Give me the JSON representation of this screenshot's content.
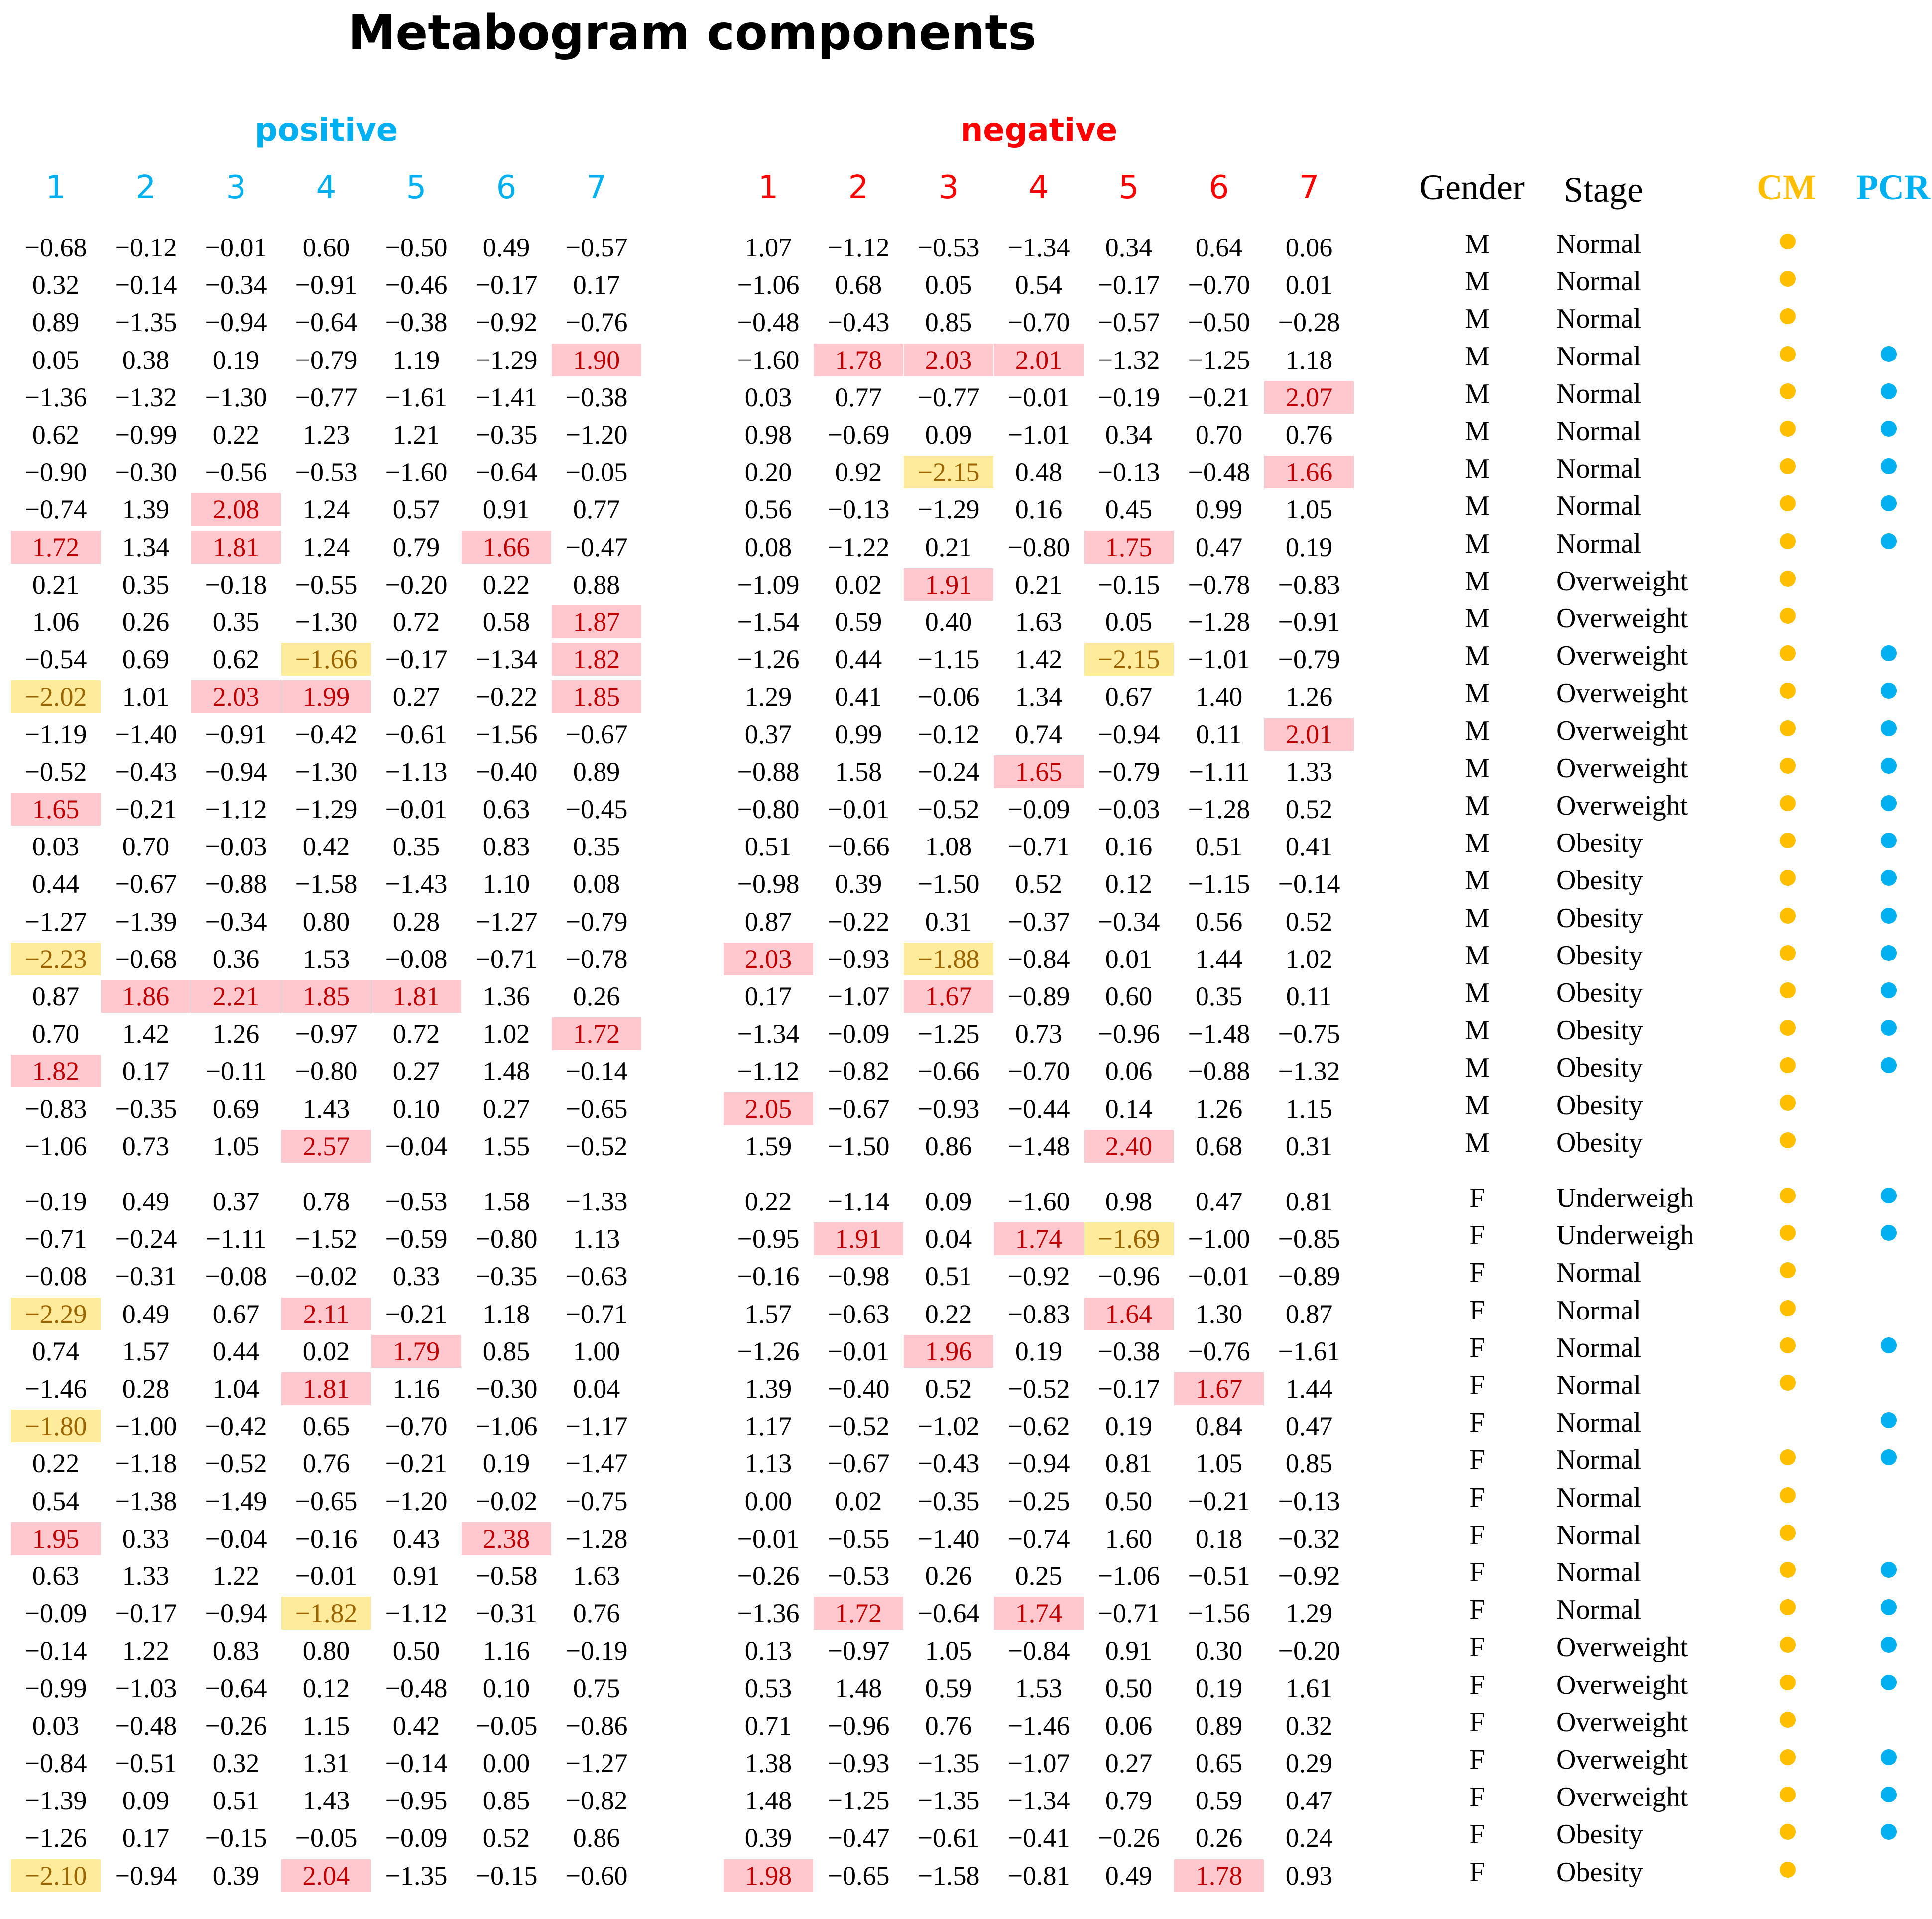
{
  "chart_data": {
    "type": "table",
    "title": "Metabogram components",
    "groups": [
      {
        "key": "positive",
        "label": "positive",
        "color": "#00b0f0"
      },
      {
        "key": "negative",
        "label": "negative",
        "color": "#ff0000"
      }
    ],
    "column_labels": [
      "1",
      "2",
      "3",
      "4",
      "5",
      "6",
      "7"
    ],
    "meta_headers": {
      "gender": "Gender",
      "stage": "Stage",
      "cm": "CM",
      "pcr": "PCR"
    },
    "colors": {
      "positive": "#00b0f0",
      "negative": "#ff0000",
      "cm": "#ffbf00",
      "pcr": "#00b0f0",
      "high_bg": "#ffc7ce",
      "high_text": "#c00000",
      "low_bg": "#ffeb9c",
      "low_text": "#9c6500"
    },
    "highlight_rule": {
      "high_threshold": 1.64,
      "low_threshold": -1.64
    },
    "rows": [
      {
        "positive": [
          "−0.68",
          "−0.12",
          "−0.01",
          "0.60",
          "−0.50",
          "0.49",
          "−0.57"
        ],
        "negative": [
          "1.07",
          "−1.12",
          "−0.53",
          "−1.34",
          "0.34",
          "0.64",
          "0.06"
        ],
        "gender": "M",
        "stage": "Normal",
        "cm": true,
        "pcr": false
      },
      {
        "positive": [
          "0.32",
          "−0.14",
          "−0.34",
          "−0.91",
          "−0.46",
          "−0.17",
          "0.17"
        ],
        "negative": [
          "−1.06",
          "0.68",
          "0.05",
          "0.54",
          "−0.17",
          "−0.70",
          "0.01"
        ],
        "gender": "M",
        "stage": "Normal",
        "cm": true,
        "pcr": false
      },
      {
        "positive": [
          "0.89",
          "−1.35",
          "−0.94",
          "−0.64",
          "−0.38",
          "−0.92",
          "−0.76"
        ],
        "negative": [
          "−0.48",
          "−0.43",
          "0.85",
          "−0.70",
          "−0.57",
          "−0.50",
          "−0.28"
        ],
        "gender": "M",
        "stage": "Normal",
        "cm": true,
        "pcr": false
      },
      {
        "positive": [
          "0.05",
          "0.38",
          "0.19",
          "−0.79",
          "1.19",
          "−1.29",
          "1.90"
        ],
        "negative": [
          "−1.60",
          "1.78",
          "2.03",
          "2.01",
          "−1.32",
          "−1.25",
          "1.18"
        ],
        "gender": "M",
        "stage": "Normal",
        "cm": true,
        "pcr": true
      },
      {
        "positive": [
          "−1.36",
          "−1.32",
          "−1.30",
          "−0.77",
          "−1.61",
          "−1.41",
          "−0.38"
        ],
        "negative": [
          "0.03",
          "0.77",
          "−0.77",
          "−0.01",
          "−0.19",
          "−0.21",
          "2.07"
        ],
        "gender": "M",
        "stage": "Normal",
        "cm": true,
        "pcr": true
      },
      {
        "positive": [
          "0.62",
          "−0.99",
          "0.22",
          "1.23",
          "1.21",
          "−0.35",
          "−1.20"
        ],
        "negative": [
          "0.98",
          "−0.69",
          "0.09",
          "−1.01",
          "0.34",
          "0.70",
          "0.76"
        ],
        "gender": "M",
        "stage": "Normal",
        "cm": true,
        "pcr": true
      },
      {
        "positive": [
          "−0.90",
          "−0.30",
          "−0.56",
          "−0.53",
          "−1.60",
          "−0.64",
          "−0.05"
        ],
        "negative": [
          "0.20",
          "0.92",
          "−2.15",
          "0.48",
          "−0.13",
          "−0.48",
          "1.66"
        ],
        "gender": "M",
        "stage": "Normal",
        "cm": true,
        "pcr": true
      },
      {
        "positive": [
          "−0.74",
          "1.39",
          "2.08",
          "1.24",
          "0.57",
          "0.91",
          "0.77"
        ],
        "negative": [
          "0.56",
          "−0.13",
          "−1.29",
          "0.16",
          "0.45",
          "0.99",
          "1.05"
        ],
        "gender": "M",
        "stage": "Normal",
        "cm": true,
        "pcr": true
      },
      {
        "positive": [
          "1.72",
          "1.34",
          "1.81",
          "1.24",
          "0.79",
          "1.66",
          "−0.47"
        ],
        "negative": [
          "0.08",
          "−1.22",
          "0.21",
          "−0.80",
          "1.75",
          "0.47",
          "0.19"
        ],
        "gender": "M",
        "stage": "Normal",
        "cm": true,
        "pcr": true
      },
      {
        "positive": [
          "0.21",
          "0.35",
          "−0.18",
          "−0.55",
          "−0.20",
          "0.22",
          "0.88"
        ],
        "negative": [
          "−1.09",
          "0.02",
          "1.91",
          "0.21",
          "−0.15",
          "−0.78",
          "−0.83"
        ],
        "gender": "M",
        "stage": "Overweight",
        "cm": true,
        "pcr": false
      },
      {
        "positive": [
          "1.06",
          "0.26",
          "0.35",
          "−1.30",
          "0.72",
          "0.58",
          "1.87"
        ],
        "negative": [
          "−1.54",
          "0.59",
          "0.40",
          "1.63",
          "0.05",
          "−1.28",
          "−0.91"
        ],
        "gender": "M",
        "stage": "Overweight",
        "cm": true,
        "pcr": false
      },
      {
        "positive": [
          "−0.54",
          "0.69",
          "0.62",
          "−1.66",
          "−0.17",
          "−1.34",
          "1.82"
        ],
        "negative": [
          "−1.26",
          "0.44",
          "−1.15",
          "1.42",
          "−2.15",
          "−1.01",
          "−0.79"
        ],
        "gender": "M",
        "stage": "Overweight",
        "cm": true,
        "pcr": true
      },
      {
        "positive": [
          "−2.02",
          "1.01",
          "2.03",
          "1.99",
          "0.27",
          "−0.22",
          "1.85"
        ],
        "negative": [
          "1.29",
          "0.41",
          "−0.06",
          "1.34",
          "0.67",
          "1.40",
          "1.26"
        ],
        "gender": "M",
        "stage": "Overweight",
        "cm": true,
        "pcr": true
      },
      {
        "positive": [
          "−1.19",
          "−1.40",
          "−0.91",
          "−0.42",
          "−0.61",
          "−1.56",
          "−0.67"
        ],
        "negative": [
          "0.37",
          "0.99",
          "−0.12",
          "0.74",
          "−0.94",
          "0.11",
          "2.01"
        ],
        "gender": "M",
        "stage": "Overweight",
        "cm": true,
        "pcr": true
      },
      {
        "positive": [
          "−0.52",
          "−0.43",
          "−0.94",
          "−1.30",
          "−1.13",
          "−0.40",
          "0.89"
        ],
        "negative": [
          "−0.88",
          "1.58",
          "−0.24",
          "1.65",
          "−0.79",
          "−1.11",
          "1.33"
        ],
        "gender": "M",
        "stage": "Overweight",
        "cm": true,
        "pcr": true
      },
      {
        "positive": [
          "1.65",
          "−0.21",
          "−1.12",
          "−1.29",
          "−0.01",
          "0.63",
          "−0.45"
        ],
        "negative": [
          "−0.80",
          "−0.01",
          "−0.52",
          "−0.09",
          "−0.03",
          "−1.28",
          "0.52"
        ],
        "gender": "M",
        "stage": "Overweight",
        "cm": true,
        "pcr": true
      },
      {
        "positive": [
          "0.03",
          "0.70",
          "−0.03",
          "0.42",
          "0.35",
          "0.83",
          "0.35"
        ],
        "negative": [
          "0.51",
          "−0.66",
          "1.08",
          "−0.71",
          "0.16",
          "0.51",
          "0.41"
        ],
        "gender": "M",
        "stage": "Obesity",
        "cm": true,
        "pcr": true
      },
      {
        "positive": [
          "0.44",
          "−0.67",
          "−0.88",
          "−1.58",
          "−1.43",
          "1.10",
          "0.08"
        ],
        "negative": [
          "−0.98",
          "0.39",
          "−1.50",
          "0.52",
          "0.12",
          "−1.15",
          "−0.14"
        ],
        "gender": "M",
        "stage": "Obesity",
        "cm": true,
        "pcr": true
      },
      {
        "positive": [
          "−1.27",
          "−1.39",
          "−0.34",
          "0.80",
          "0.28",
          "−1.27",
          "−0.79"
        ],
        "negative": [
          "0.87",
          "−0.22",
          "0.31",
          "−0.37",
          "−0.34",
          "0.56",
          "0.52"
        ],
        "gender": "M",
        "stage": "Obesity",
        "cm": true,
        "pcr": true
      },
      {
        "positive": [
          "−2.23",
          "−0.68",
          "0.36",
          "1.53",
          "−0.08",
          "−0.71",
          "−0.78"
        ],
        "negative": [
          "2.03",
          "−0.93",
          "−1.88",
          "−0.84",
          "0.01",
          "1.44",
          "1.02"
        ],
        "gender": "M",
        "stage": "Obesity",
        "cm": true,
        "pcr": true
      },
      {
        "positive": [
          "0.87",
          "1.86",
          "2.21",
          "1.85",
          "1.81",
          "1.36",
          "0.26"
        ],
        "negative": [
          "0.17",
          "−1.07",
          "1.67",
          "−0.89",
          "0.60",
          "0.35",
          "0.11"
        ],
        "gender": "M",
        "stage": "Obesity",
        "cm": true,
        "pcr": true
      },
      {
        "positive": [
          "0.70",
          "1.42",
          "1.26",
          "−0.97",
          "0.72",
          "1.02",
          "1.72"
        ],
        "negative": [
          "−1.34",
          "−0.09",
          "−1.25",
          "0.73",
          "−0.96",
          "−1.48",
          "−0.75"
        ],
        "gender": "M",
        "stage": "Obesity",
        "cm": true,
        "pcr": true
      },
      {
        "positive": [
          "1.82",
          "0.17",
          "−0.11",
          "−0.80",
          "0.27",
          "1.48",
          "−0.14"
        ],
        "negative": [
          "−1.12",
          "−0.82",
          "−0.66",
          "−0.70",
          "0.06",
          "−0.88",
          "−1.32"
        ],
        "gender": "M",
        "stage": "Obesity",
        "cm": true,
        "pcr": true
      },
      {
        "positive": [
          "−0.83",
          "−0.35",
          "0.69",
          "1.43",
          "0.10",
          "0.27",
          "−0.65"
        ],
        "negative": [
          "2.05",
          "−0.67",
          "−0.93",
          "−0.44",
          "0.14",
          "1.26",
          "1.15"
        ],
        "gender": "M",
        "stage": "Obesity",
        "cm": true,
        "pcr": false
      },
      {
        "positive": [
          "−1.06",
          "0.73",
          "1.05",
          "2.57",
          "−0.04",
          "1.55",
          "−0.52"
        ],
        "negative": [
          "1.59",
          "−1.50",
          "0.86",
          "−1.48",
          "2.40",
          "0.68",
          "0.31"
        ],
        "gender": "M",
        "stage": "Obesity",
        "cm": true,
        "pcr": false
      },
      {
        "positive": [
          "−0.19",
          "0.49",
          "0.37",
          "0.78",
          "−0.53",
          "1.58",
          "−1.33"
        ],
        "negative": [
          "0.22",
          "−1.14",
          "0.09",
          "−1.60",
          "0.98",
          "0.47",
          "0.81"
        ],
        "gender": "F",
        "stage": "Underweigh",
        "cm": true,
        "pcr": true
      },
      {
        "positive": [
          "−0.71",
          "−0.24",
          "−1.11",
          "−1.52",
          "−0.59",
          "−0.80",
          "1.13"
        ],
        "negative": [
          "−0.95",
          "1.91",
          "0.04",
          "1.74",
          "−1.69",
          "−1.00",
          "−0.85"
        ],
        "gender": "F",
        "stage": "Underweigh",
        "cm": true,
        "pcr": true
      },
      {
        "positive": [
          "−0.08",
          "−0.31",
          "−0.08",
          "−0.02",
          "0.33",
          "−0.35",
          "−0.63"
        ],
        "negative": [
          "−0.16",
          "−0.98",
          "0.51",
          "−0.92",
          "−0.96",
          "−0.01",
          "−0.89"
        ],
        "gender": "F",
        "stage": "Normal",
        "cm": true,
        "pcr": false
      },
      {
        "positive": [
          "−2.29",
          "0.49",
          "0.67",
          "2.11",
          "−0.21",
          "1.18",
          "−0.71"
        ],
        "negative": [
          "1.57",
          "−0.63",
          "0.22",
          "−0.83",
          "1.64",
          "1.30",
          "0.87"
        ],
        "gender": "F",
        "stage": "Normal",
        "cm": true,
        "pcr": false
      },
      {
        "positive": [
          "0.74",
          "1.57",
          "0.44",
          "0.02",
          "1.79",
          "0.85",
          "1.00"
        ],
        "negative": [
          "−1.26",
          "−0.01",
          "1.96",
          "0.19",
          "−0.38",
          "−0.76",
          "−1.61"
        ],
        "gender": "F",
        "stage": "Normal",
        "cm": true,
        "pcr": true
      },
      {
        "positive": [
          "−1.46",
          "0.28",
          "1.04",
          "1.81",
          "1.16",
          "−0.30",
          "0.04"
        ],
        "negative": [
          "1.39",
          "−0.40",
          "0.52",
          "−0.52",
          "−0.17",
          "1.67",
          "1.44"
        ],
        "gender": "F",
        "stage": "Normal",
        "cm": true,
        "pcr": false
      },
      {
        "positive": [
          "−1.80",
          "−1.00",
          "−0.42",
          "0.65",
          "−0.70",
          "−1.06",
          "−1.17"
        ],
        "negative": [
          "1.17",
          "−0.52",
          "−1.02",
          "−0.62",
          "0.19",
          "0.84",
          "0.47"
        ],
        "gender": "F",
        "stage": "Normal",
        "cm": false,
        "pcr": true
      },
      {
        "positive": [
          "0.22",
          "−1.18",
          "−0.52",
          "0.76",
          "−0.21",
          "0.19",
          "−1.47"
        ],
        "negative": [
          "1.13",
          "−0.67",
          "−0.43",
          "−0.94",
          "0.81",
          "1.05",
          "0.85"
        ],
        "gender": "F",
        "stage": "Normal",
        "cm": true,
        "pcr": true
      },
      {
        "positive": [
          "0.54",
          "−1.38",
          "−1.49",
          "−0.65",
          "−1.20",
          "−0.02",
          "−0.75"
        ],
        "negative": [
          "0.00",
          "0.02",
          "−0.35",
          "−0.25",
          "0.50",
          "−0.21",
          "−0.13"
        ],
        "gender": "F",
        "stage": "Normal",
        "cm": true,
        "pcr": false
      },
      {
        "positive": [
          "1.95",
          "0.33",
          "−0.04",
          "−0.16",
          "0.43",
          "2.38",
          "−1.28"
        ],
        "negative": [
          "−0.01",
          "−0.55",
          "−1.40",
          "−0.74",
          "1.60",
          "0.18",
          "−0.32"
        ],
        "gender": "F",
        "stage": "Normal",
        "cm": true,
        "pcr": false
      },
      {
        "positive": [
          "0.63",
          "1.33",
          "1.22",
          "−0.01",
          "0.91",
          "−0.58",
          "1.63"
        ],
        "negative": [
          "−0.26",
          "−0.53",
          "0.26",
          "0.25",
          "−1.06",
          "−0.51",
          "−0.92"
        ],
        "gender": "F",
        "stage": "Normal",
        "cm": true,
        "pcr": true
      },
      {
        "positive": [
          "−0.09",
          "−0.17",
          "−0.94",
          "−1.82",
          "−1.12",
          "−0.31",
          "0.76"
        ],
        "negative": [
          "−1.36",
          "1.72",
          "−0.64",
          "1.74",
          "−0.71",
          "−1.56",
          "1.29"
        ],
        "gender": "F",
        "stage": "Normal",
        "cm": true,
        "pcr": true
      },
      {
        "positive": [
          "−0.14",
          "1.22",
          "0.83",
          "0.80",
          "0.50",
          "1.16",
          "−0.19"
        ],
        "negative": [
          "0.13",
          "−0.97",
          "1.05",
          "−0.84",
          "0.91",
          "0.30",
          "−0.20"
        ],
        "gender": "F",
        "stage": "Overweight",
        "cm": true,
        "pcr": true
      },
      {
        "positive": [
          "−0.99",
          "−1.03",
          "−0.64",
          "0.12",
          "−0.48",
          "0.10",
          "0.75"
        ],
        "negative": [
          "0.53",
          "1.48",
          "0.59",
          "1.53",
          "0.50",
          "0.19",
          "1.61"
        ],
        "gender": "F",
        "stage": "Overweight",
        "cm": true,
        "pcr": true
      },
      {
        "positive": [
          "0.03",
          "−0.48",
          "−0.26",
          "1.15",
          "0.42",
          "−0.05",
          "−0.86"
        ],
        "negative": [
          "0.71",
          "−0.96",
          "0.76",
          "−1.46",
          "0.06",
          "0.89",
          "0.32"
        ],
        "gender": "F",
        "stage": "Overweight",
        "cm": true,
        "pcr": false
      },
      {
        "positive": [
          "−0.84",
          "−0.51",
          "0.32",
          "1.31",
          "−0.14",
          "0.00",
          "−1.27"
        ],
        "negative": [
          "1.38",
          "−0.93",
          "−1.35",
          "−1.07",
          "0.27",
          "0.65",
          "0.29"
        ],
        "gender": "F",
        "stage": "Overweight",
        "cm": true,
        "pcr": true
      },
      {
        "positive": [
          "−1.39",
          "0.09",
          "0.51",
          "1.43",
          "−0.95",
          "0.85",
          "−0.82"
        ],
        "negative": [
          "1.48",
          "−1.25",
          "−1.35",
          "−1.34",
          "0.79",
          "0.59",
          "0.47"
        ],
        "gender": "F",
        "stage": "Overweight",
        "cm": true,
        "pcr": true
      },
      {
        "positive": [
          "−1.26",
          "0.17",
          "−0.15",
          "−0.05",
          "−0.09",
          "0.52",
          "0.86"
        ],
        "negative": [
          "0.39",
          "−0.47",
          "−0.61",
          "−0.41",
          "−0.26",
          "0.26",
          "0.24"
        ],
        "gender": "F",
        "stage": "Obesity",
        "cm": true,
        "pcr": true
      },
      {
        "positive": [
          "−2.10",
          "−0.94",
          "0.39",
          "2.04",
          "−1.35",
          "−0.15",
          "−0.60"
        ],
        "negative": [
          "1.98",
          "−0.65",
          "−1.58",
          "−0.81",
          "0.49",
          "1.78",
          "0.93"
        ],
        "gender": "F",
        "stage": "Obesity",
        "cm": true,
        "pcr": false
      }
    ]
  }
}
